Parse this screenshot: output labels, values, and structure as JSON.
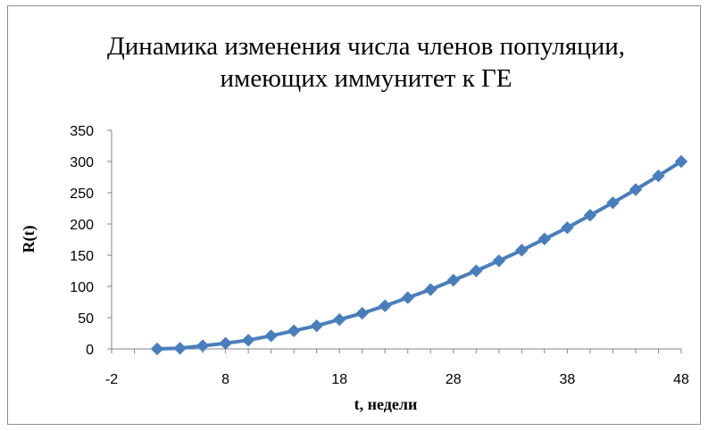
{
  "chart_data": {
    "type": "line",
    "title_lines": [
      "Динамика изменения числа членов популяции,",
      "имеющих иммунитет к ГЕ"
    ],
    "xlabel": "t, недели",
    "ylabel": "R(t)",
    "xlim": [
      -2,
      48
    ],
    "ylim": [
      0,
      350
    ],
    "x_ticks": [
      "-2",
      "8",
      "18",
      "28",
      "38",
      "48"
    ],
    "y_ticks": [
      "0",
      "50",
      "100",
      "150",
      "200",
      "250",
      "300",
      "350"
    ],
    "grid": false,
    "legend": "none",
    "series": [
      {
        "color": "#4a7ebb",
        "marker": "diamond",
        "x": [
          2,
          4,
          6,
          8,
          10,
          12,
          14,
          16,
          18,
          20,
          22,
          24,
          26,
          28,
          30,
          32,
          34,
          36,
          38,
          40,
          42,
          44,
          46,
          48
        ],
        "y": [
          0,
          1,
          5,
          9,
          14,
          21,
          29,
          37,
          47,
          57,
          69,
          82,
          95,
          110,
          125,
          141,
          158,
          176,
          194,
          214,
          234,
          255,
          277,
          300
        ]
      }
    ]
  }
}
